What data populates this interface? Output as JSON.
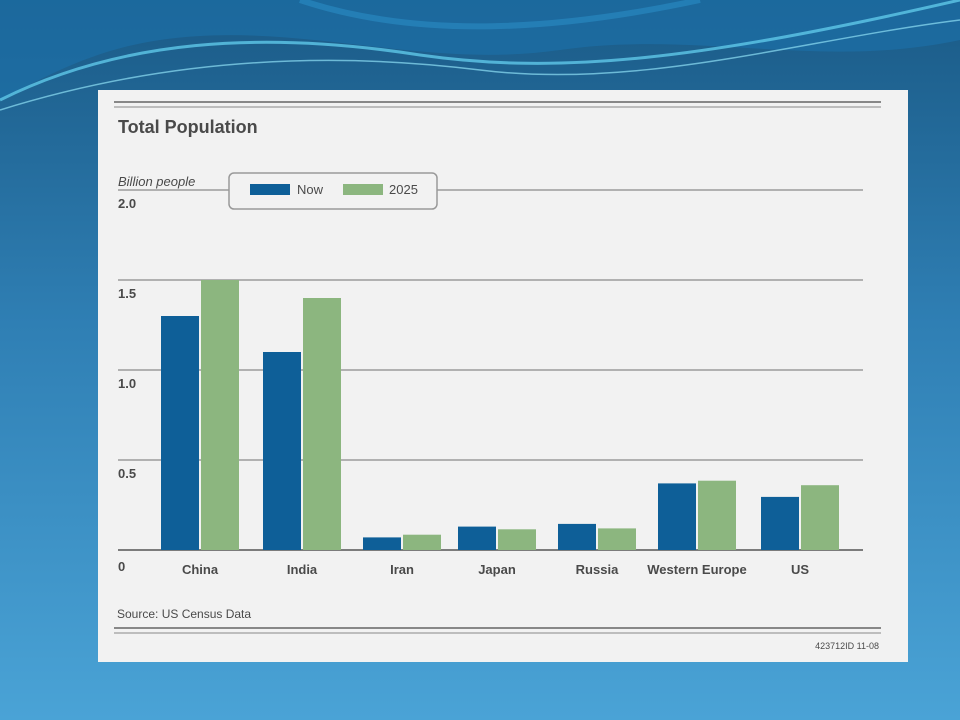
{
  "chart_data": {
    "type": "bar",
    "title": "Total Population",
    "ylabel": "Billion people",
    "xlabel": "",
    "ylim": [
      0,
      2.0
    ],
    "yticks": [
      "0",
      "0.5",
      "1.0",
      "1.5",
      "2.0"
    ],
    "categories": [
      "China",
      "India",
      "Iran",
      "Japan",
      "Russia",
      "Western Europe",
      "US"
    ],
    "series": [
      {
        "name": "Now",
        "color": "#0e5f98",
        "values": [
          1.3,
          1.1,
          0.07,
          0.13,
          0.145,
          0.37,
          0.295
        ]
      },
      {
        "name": "2025",
        "color": "#8cb67f",
        "values": [
          1.5,
          1.4,
          0.085,
          0.115,
          0.12,
          0.385,
          0.36
        ]
      }
    ],
    "legend_position": "top-center",
    "grid": true,
    "source": "Source: US Census Data",
    "code": "423712ID  11-08"
  },
  "colors": {
    "now": "#0e5f98",
    "y2025": "#8cb67f",
    "background_top": "#1a5a86",
    "background_bottom": "#4aa3d6"
  }
}
